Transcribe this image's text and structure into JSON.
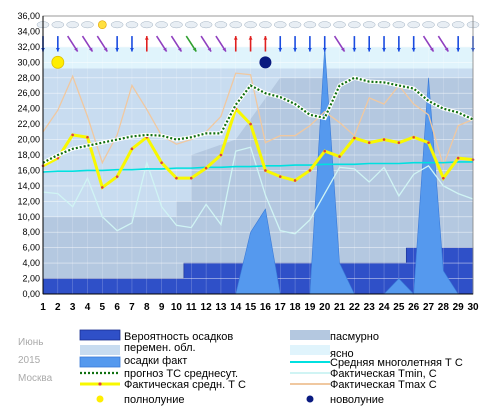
{
  "chart_data": {
    "type": "line",
    "month_label": "Июнь",
    "year_label": "2015",
    "city_label": "Москва",
    "x": [
      1,
      2,
      3,
      4,
      5,
      6,
      7,
      8,
      9,
      10,
      11,
      12,
      13,
      14,
      15,
      16,
      17,
      18,
      19,
      20,
      21,
      22,
      23,
      24,
      25,
      26,
      27,
      28,
      29,
      30
    ],
    "ylim": [
      0,
      36
    ],
    "yticks": [
      "0,00",
      "2,00",
      "4,00",
      "6,00",
      "8,00",
      "10,00",
      "12,00",
      "14,00",
      "16,00",
      "18,00",
      "20,00",
      "22,00",
      "24,00",
      "26,00",
      "28,00",
      "30,00",
      "32,00",
      "34,00",
      "36,00"
    ],
    "sky_levels": [
      2,
      2,
      2,
      2,
      2,
      2,
      2,
      2,
      2,
      2,
      3,
      3,
      3,
      3,
      3,
      3,
      3,
      3,
      3,
      3,
      3,
      3,
      3,
      3,
      3,
      3,
      3,
      3,
      3,
      3
    ],
    "series": [
      {
        "key": "precip_prob",
        "name": "Вероятность осадков",
        "color": "#2f50c8",
        "values": [
          2,
          2,
          2,
          2,
          2,
          2,
          2,
          2,
          2,
          2,
          4,
          4,
          4,
          4,
          4,
          4,
          4,
          4,
          4,
          4,
          4,
          4,
          4,
          4,
          4,
          6,
          6,
          6,
          6,
          6
        ]
      },
      {
        "key": "precip_fact",
        "name": "осадки факт",
        "color": "#5599ee",
        "values": [
          0,
          0,
          0,
          0,
          0,
          0,
          0,
          0,
          0,
          0,
          0,
          0,
          0,
          0,
          8,
          11,
          0,
          0,
          0,
          32,
          4,
          0,
          0,
          0,
          2,
          0,
          28,
          3,
          0,
          0
        ]
      },
      {
        "key": "forecast_avg",
        "name": "прогноз ТС среднесут.",
        "color": "#107010",
        "values": [
          17,
          18,
          18.8,
          19.2,
          19.6,
          20,
          20.4,
          20.6,
          20.5,
          20,
          20.3,
          20.8,
          20.8,
          24.5,
          27,
          26,
          25.5,
          24.6,
          23.2,
          22.8,
          27,
          28,
          27.5,
          27.4,
          27,
          26.6,
          25,
          24,
          23.5,
          22.6
        ]
      },
      {
        "key": "fact_avg",
        "name": "Фактическая средн. Т С",
        "color": "#f8f800",
        "values": [
          16.6,
          17.6,
          20.6,
          20.3,
          13.8,
          15.2,
          18.8,
          20.3,
          17,
          15,
          15,
          16.3,
          18,
          24,
          22,
          16,
          15.2,
          14.7,
          16,
          18.5,
          17.8,
          20.2,
          19.6,
          20,
          19.6,
          20.3,
          19.6,
          15,
          17.6,
          17.4
        ]
      },
      {
        "key": "climate_avg",
        "name": "Средняя многолетняя Т С",
        "color": "#00e0e0",
        "values": [
          15.8,
          15.9,
          15.9,
          16,
          16,
          16.1,
          16.1,
          16.2,
          16.2,
          16.3,
          16.3,
          16.4,
          16.4,
          16.5,
          16.5,
          16.6,
          16.6,
          16.7,
          16.7,
          16.8,
          16.8,
          16.8,
          16.9,
          16.9,
          16.9,
          17,
          17,
          17,
          17.1,
          17.1
        ]
      },
      {
        "key": "tmin",
        "name": "Фактическая Tmin, С",
        "color": "#d0f4f4",
        "values": [
          13.2,
          13,
          11.3,
          15,
          10,
          8.2,
          9.2,
          17,
          11.3,
          8.9,
          8.6,
          11.6,
          9,
          18.5,
          19,
          12.8,
          8.2,
          7.8,
          9.6,
          13,
          16.4,
          16.2,
          14.5,
          16.4,
          12.7,
          15.5,
          16.6,
          14,
          13,
          12.3
        ]
      },
      {
        "key": "tmax",
        "name": "Фактическая Tmax С",
        "color": "#f0c8a0",
        "values": [
          21,
          23.8,
          28.2,
          23,
          17,
          20.6,
          27,
          23.9,
          20.5,
          19.4,
          20,
          21,
          23,
          28.6,
          28.4,
          19.6,
          20.5,
          20.5,
          21.8,
          23.6,
          22.2,
          20.5,
          25.4,
          24.6,
          27,
          24.6,
          23.2,
          16.6,
          21.8,
          22.6
        ]
      }
    ],
    "legend": [
      {
        "key": "precip_prob",
        "label": "Вероятность осадков"
      },
      {
        "key": "overcast",
        "label": "пасмурно"
      },
      {
        "key": "partly",
        "label": "перемен. обл."
      },
      {
        "key": "clear",
        "label": "ясно"
      },
      {
        "key": "precip_fact",
        "label": "осадки факт"
      },
      {
        "key": "climate_avg",
        "label": "Средняя многолетняя Т С"
      },
      {
        "key": "forecast_avg",
        "label": "прогноз ТС среднесут."
      },
      {
        "key": "tmin",
        "label": "Фактическая Tmin, С"
      },
      {
        "key": "fact_avg",
        "label": "Фактическая средн. Т С"
      },
      {
        "key": "tmax",
        "label": "Фактическая Tmax С"
      },
      {
        "key": "full_moon",
        "label": "полнолуние"
      },
      {
        "key": "new_moon",
        "label": "новолуние"
      }
    ],
    "moon": {
      "full_day": 2,
      "new_day": 16
    },
    "colors": {
      "overcast": "#b4c8e0",
      "partly": "#c8dcf0",
      "clear": "#e0f4fc",
      "full_moon": "#ffee00",
      "new_moon": "#0a1a80",
      "arrow_blue": "#1a4ce0",
      "arrow_purple": "#9040c0",
      "arrow_red": "#e02020",
      "arrow_green": "#30a030"
    },
    "wind_arrows": [
      "down",
      "down",
      "diag",
      "diag",
      "diag",
      "down",
      "down",
      "up",
      "diag",
      "diag",
      "diag",
      "diag",
      "diag",
      "up",
      "up",
      "up",
      "down",
      "down",
      "down",
      "down",
      "diag",
      "down",
      "down",
      "down",
      "down",
      "down",
      "diag",
      "diag",
      "down",
      "down"
    ],
    "wind_colors": [
      "blue",
      "blue",
      "purple",
      "purple",
      "purple",
      "blue",
      "blue",
      "red",
      "purple",
      "purple",
      "green",
      "purple",
      "purple",
      "red",
      "red",
      "red",
      "blue",
      "blue",
      "blue",
      "blue",
      "purple",
      "blue",
      "blue",
      "blue",
      "blue",
      "blue",
      "purple",
      "purple",
      "blue",
      "blue"
    ],
    "weather_icons": [
      "cloud",
      "cloud",
      "cloud",
      "cloud",
      "sun",
      "cloud",
      "cloud",
      "cloud",
      "cloud",
      "cloud",
      "cloud",
      "cloud",
      "cloud",
      "cloud",
      "cloud",
      "cloud",
      "cloud",
      "cloud",
      "cloud",
      "cloud",
      "cloud",
      "cloud",
      "cloud",
      "cloud",
      "cloud",
      "cloud",
      "cloud",
      "cloud",
      "cloud",
      "cloud"
    ]
  }
}
